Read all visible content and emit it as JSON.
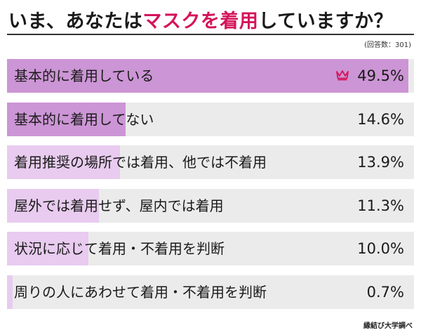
{
  "title": {
    "before": "いま、あなたは",
    "highlight": "マスクを着用",
    "after": "していますか？"
  },
  "sample_note": "(回答数：301)",
  "source": "縁結び大学調べ",
  "colors": {
    "accent": "#d4145a",
    "track": "#ebebeb",
    "fill_dark": "#cc95d5",
    "fill_light": "#e8cbef"
  },
  "chart_data": {
    "type": "bar",
    "orientation": "horizontal",
    "title": "いま、あなたはマスクを着用していますか？",
    "categories": [
      "基本的に着用している",
      "基本的に着用してない",
      "着用推奨の場所では着用、他では不着用",
      "屋外では着用せず、屋内では着用",
      "状況に応じて着用・不着用を判断",
      "周りの人にあわせて着用・不着用を判断"
    ],
    "values": [
      49.5,
      14.6,
      13.9,
      11.3,
      10.0,
      0.7
    ],
    "value_labels": [
      "49.5%",
      "14.6%",
      "13.9%",
      "11.3%",
      "10.0%",
      "0.7%"
    ],
    "unit": "%",
    "xlim": [
      0,
      50
    ],
    "top_marker": "crown-icon",
    "grid": false,
    "legend": "none"
  }
}
